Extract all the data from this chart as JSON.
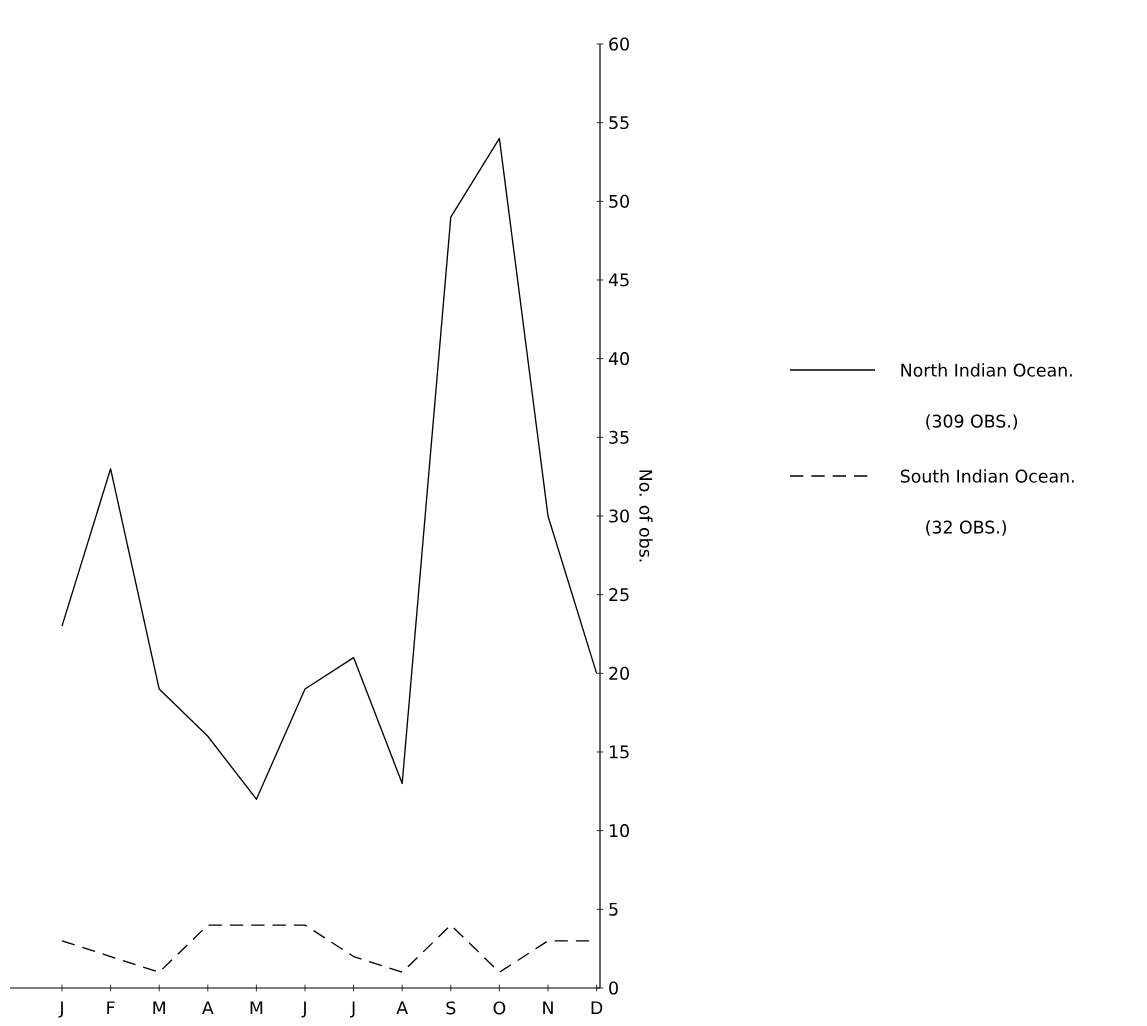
{
  "chart_data": {
    "type": "line",
    "ylabel": "No. of obs.",
    "categories": [
      "J",
      "F",
      "M",
      "A",
      "M",
      "J",
      "J",
      "A",
      "S",
      "O",
      "N",
      "D"
    ],
    "series": [
      {
        "name": "North  Indian Ocean.",
        "color": "#000000",
        "line_style": "solid",
        "values": [
          23,
          33,
          19,
          16,
          12,
          19,
          21,
          13,
          49,
          54,
          30,
          20
        ]
      },
      {
        "name": "South  Indian Ocean.",
        "color": "#000000",
        "line_style": "dashed",
        "values": [
          3,
          2,
          1,
          4,
          4,
          4,
          2,
          1,
          4,
          1,
          3,
          3
        ]
      }
    ],
    "annotations": [
      "(309  OBS.)",
      "(32  OBS.)"
    ],
    "ylim": [
      0,
      60
    ],
    "yticks": [
      0,
      5,
      10,
      15,
      20,
      25,
      30,
      35,
      40,
      45,
      50,
      55,
      60
    ],
    "legend": "right"
  }
}
